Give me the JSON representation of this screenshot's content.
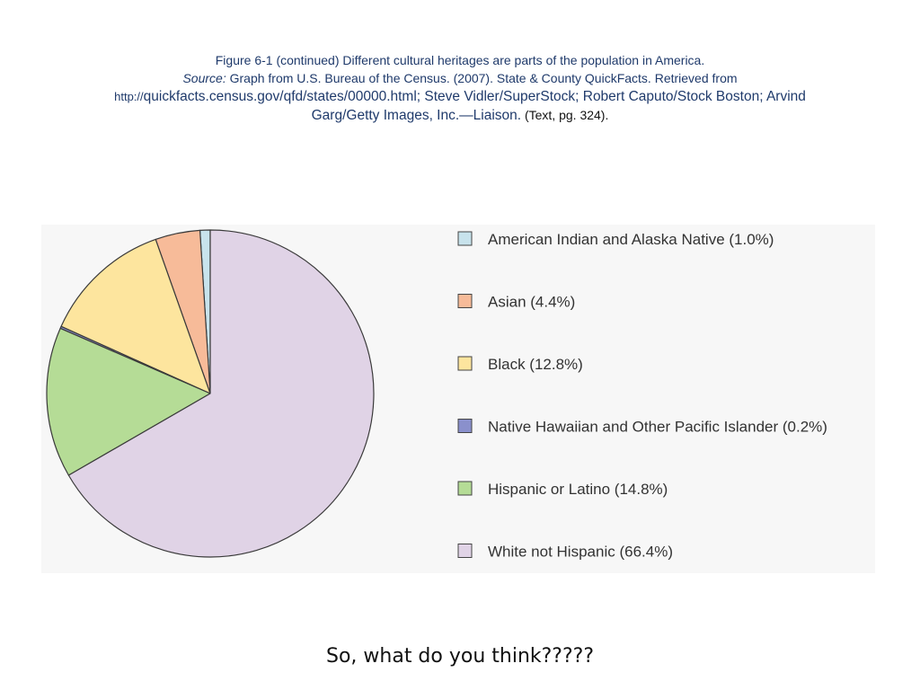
{
  "caption": {
    "line1": "Figure 6-1 (continued)   Different cultural heritages are parts of the population in America.",
    "source_label": "Source:",
    "line2_rest": " Graph from U.S. Bureau of the Census. (2007). State & County QuickFacts. Retrieved from",
    "url_prefix": "http://",
    "url_rest": "quickfacts.census.gov/qfd/states/00000.html",
    "credits_a": "; Steve Vidler/SuperStock; Robert Caputo/Stock Boston; Arvind",
    "credits_b": "Garg/Getty Images, Inc.—Liaison.",
    "text_ref": " (Text, pg.  324)."
  },
  "chart_data": {
    "type": "pie",
    "start_angle_deg": -90,
    "direction": "counterclockwise",
    "slices": [
      {
        "label": "American Indian and Alaska Native (1.0%)",
        "value": 1.0,
        "color": "#c8e3ec"
      },
      {
        "label": "Asian (4.4%)",
        "value": 4.4,
        "color": "#f7bb99"
      },
      {
        "label": "Black (12.8%)",
        "value": 12.8,
        "color": "#fde59e"
      },
      {
        "label": "Native Hawaiian and Other Pacific Islander (0.2%)",
        "value": 0.2,
        "color": "#8a90cc"
      },
      {
        "label": "Hispanic or Latino (14.8%)",
        "value": 14.8,
        "color": "#b5dc96"
      },
      {
        "label": "White not Hispanic (66.4%)",
        "value": 66.4,
        "color": "#e0d3e6"
      }
    ],
    "legend_position": "right"
  },
  "footer": {
    "question": "So, what do you think?????"
  }
}
